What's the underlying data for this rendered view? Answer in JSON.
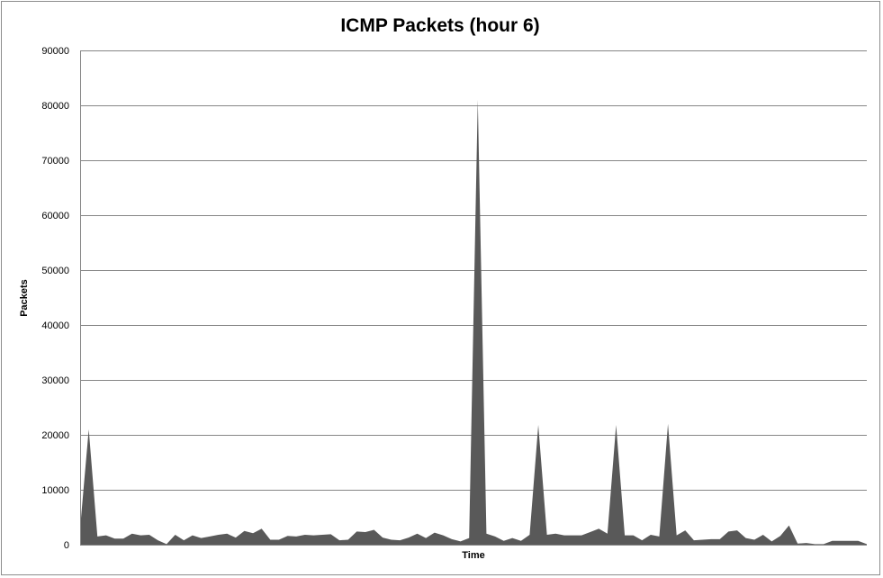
{
  "chart_data": {
    "type": "area",
    "title": "ICMP Packets (hour 6)",
    "xlabel": "Time",
    "ylabel": "Packets",
    "ylim": [
      0,
      90000
    ],
    "yticks": [
      0,
      10000,
      20000,
      30000,
      40000,
      50000,
      60000,
      70000,
      80000,
      90000
    ],
    "grid": true,
    "legend": "none",
    "colors": {
      "area": "#595959",
      "grid": "#868686",
      "frame": "#8c8c8c"
    },
    "series": [
      {
        "values": [
          3000,
          21000,
          1500,
          1700,
          1100,
          1100,
          2000,
          1700,
          1800,
          800,
          100,
          1800,
          800,
          1700,
          1200,
          1500,
          1800,
          2000,
          1300,
          2500,
          2100,
          2900,
          900,
          900,
          1600,
          1500,
          1800,
          1700,
          1800,
          1900,
          800,
          900,
          2400,
          2300,
          2700,
          1300,
          900,
          800,
          1300,
          2000,
          1200,
          2200,
          1700,
          1000,
          600,
          1200,
          81000,
          2000,
          1500,
          700,
          1200,
          700,
          1800,
          21800,
          1800,
          2000,
          1700,
          1700,
          1700,
          2300,
          2900,
          2000,
          21800,
          1700,
          1700,
          800,
          1800,
          1500,
          22000,
          1700,
          2600,
          800,
          900,
          1000,
          1000,
          2400,
          2600,
          1200,
          900,
          1800,
          600,
          1600,
          3500,
          200,
          300,
          100,
          100,
          700,
          700,
          700,
          700,
          100
        ]
      }
    ]
  }
}
